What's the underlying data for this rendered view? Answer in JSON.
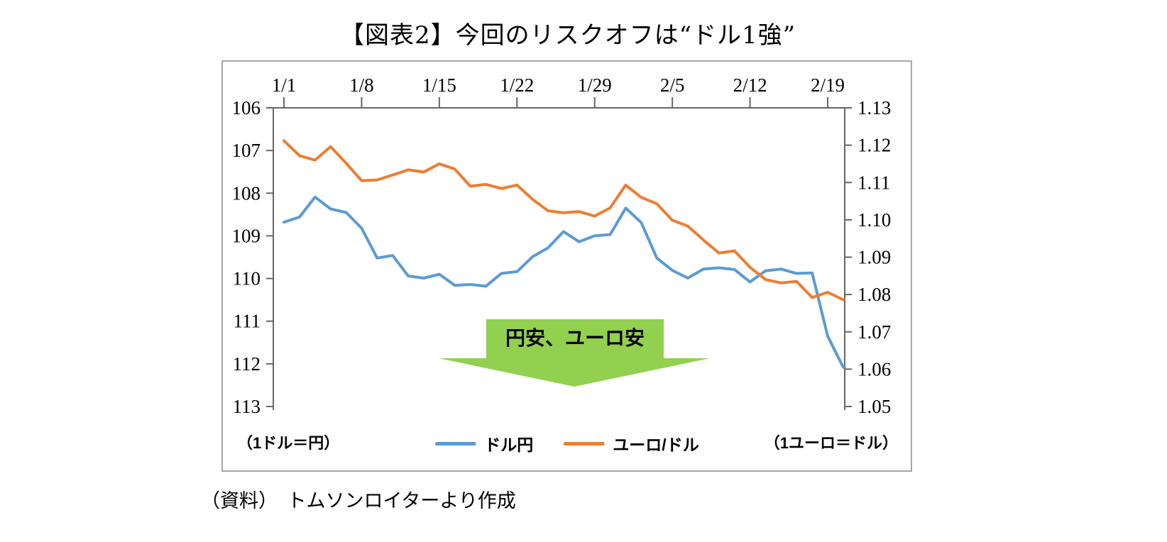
{
  "title": "【図表2】今回のリスクオフは“ドル1強”",
  "source": "（資料）　トムソンロイターより作成",
  "annotation": {
    "label": "円安、ユーロ安",
    "color": "#92D050"
  },
  "left_axis_note": "（1ドル＝円）",
  "right_axis_note": "（1ユーロ＝ドル）",
  "chart_data": {
    "type": "line",
    "x": [
      "1/1",
      "1/2",
      "1/3",
      "1/6",
      "1/7",
      "1/8",
      "1/9",
      "1/10",
      "1/13",
      "1/14",
      "1/15",
      "1/16",
      "1/17",
      "1/20",
      "1/21",
      "1/22",
      "1/23",
      "1/24",
      "1/27",
      "1/28",
      "1/29",
      "1/30",
      "1/31",
      "2/3",
      "2/4",
      "2/5",
      "2/6",
      "2/7",
      "2/10",
      "2/11",
      "2/12",
      "2/13",
      "2/14",
      "2/17",
      "2/18",
      "2/19",
      "2/20"
    ],
    "x_tick_labels": [
      "1/1",
      "1/8",
      "1/15",
      "1/22",
      "1/29",
      "2/5",
      "2/12",
      "2/19"
    ],
    "x_tick_every": 5,
    "left_axis": {
      "min": 106,
      "max": 113,
      "inverted": true,
      "ticks": [
        106,
        107,
        108,
        109,
        110,
        111,
        112,
        113
      ]
    },
    "right_axis": {
      "min": 1.05,
      "max": 1.13,
      "ticks": [
        "1.13",
        "1.12",
        "1.11",
        "1.10",
        "1.09",
        "1.08",
        "1.07",
        "1.06",
        "1.05"
      ]
    },
    "series": [
      {
        "name": "ドル円",
        "axis": "left",
        "color": "#5B9BD5",
        "values": [
          108.68,
          108.56,
          108.09,
          108.37,
          108.45,
          108.82,
          109.52,
          109.46,
          109.94,
          109.99,
          109.9,
          110.16,
          110.14,
          110.18,
          109.88,
          109.84,
          109.49,
          109.28,
          108.9,
          109.14,
          109.0,
          108.97,
          108.35,
          108.69,
          109.52,
          109.81,
          109.99,
          109.78,
          109.75,
          109.79,
          110.08,
          109.82,
          109.78,
          109.88,
          109.87,
          111.35,
          112.08
        ]
      },
      {
        "name": "ユーロ/ドル",
        "axis": "right",
        "color": "#ED7D31",
        "values": [
          1.1212,
          1.1172,
          1.116,
          1.1196,
          1.1152,
          1.1105,
          1.1107,
          1.112,
          1.1134,
          1.1128,
          1.115,
          1.1136,
          1.109,
          1.1095,
          1.1084,
          1.1093,
          1.1055,
          1.1024,
          1.1019,
          1.1022,
          1.101,
          1.1032,
          1.1093,
          1.106,
          1.1043,
          1.0999,
          1.0983,
          1.0946,
          1.0911,
          1.0917,
          1.0873,
          1.084,
          1.0831,
          1.0835,
          1.0792,
          1.0806,
          1.0786
        ]
      }
    ]
  }
}
